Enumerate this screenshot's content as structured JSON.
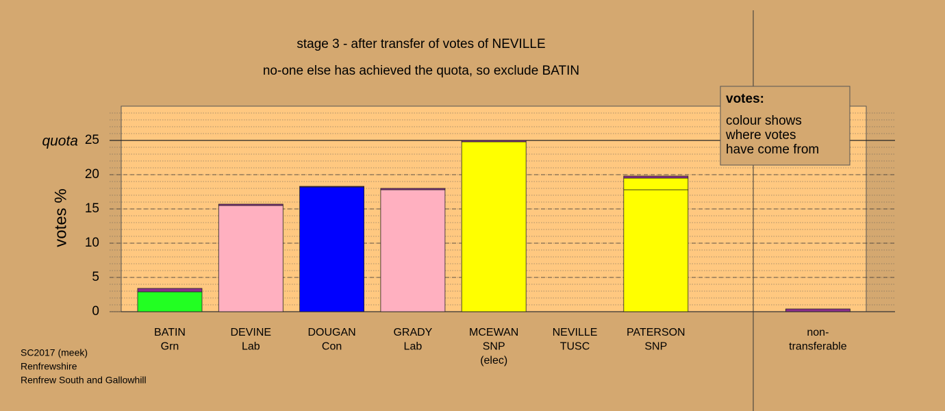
{
  "chart_data": {
    "type": "bar",
    "stacked": true,
    "title": "stage 3 - after transfer of votes of NEVILLE",
    "subtitle": "no-one else has achieved the quota, so exclude BATIN",
    "ylabel": "votes %",
    "categories": [
      [
        "BATIN",
        "Grn"
      ],
      [
        "DEVINE",
        "Lab"
      ],
      [
        "DOUGAN",
        "Con"
      ],
      [
        "GRADY",
        "Lab"
      ],
      [
        "MCEWAN",
        "SNP",
        "(elec)"
      ],
      [
        "NEVILLE",
        "TUSC"
      ],
      [
        "PATERSON",
        "SNP"
      ],
      [
        "non-",
        "transferable"
      ]
    ],
    "series": [
      {
        "colors": [
          "#22ff22",
          "#ffb0c0",
          "#0000ff",
          "#ffb0c0",
          "#ffff00",
          "#ff0000",
          "#ffff00",
          "#8b2f8b"
        ],
        "values": [
          2.9,
          15.5,
          18.2,
          17.8,
          24.8,
          0,
          17.8,
          0
        ]
      },
      {
        "color": "#ffff00",
        "values": [
          0,
          0,
          0,
          0,
          0,
          0,
          1.7,
          0
        ]
      },
      {
        "color": "#8b2f8b",
        "values": [
          0.5,
          0.2,
          0.1,
          0.2,
          0.2,
          0,
          0.3,
          0.4
        ]
      }
    ],
    "ylim": [
      0,
      30
    ],
    "yticks": [
      0,
      5,
      10,
      15,
      20,
      25
    ],
    "quota": {
      "value": 25,
      "label": "quota"
    },
    "grid": true,
    "legend": {
      "title": "votes:",
      "lines": [
        "colour shows",
        "where votes",
        "have come from"
      ]
    },
    "footer": [
      "SC2017 (meek)",
      "Renfrewshire",
      "Renfrew South and Gallowhill"
    ]
  }
}
